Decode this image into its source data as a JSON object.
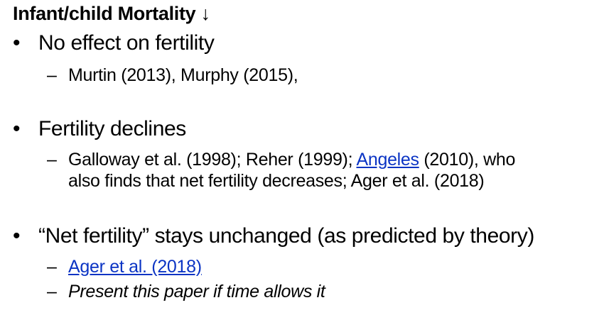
{
  "title": "Infant/child Mortality ↓",
  "bullet_symbol": "•",
  "dash_symbol": "–",
  "bullets": [
    {
      "text": "No effect on fertility",
      "sub": [
        {
          "text": "Murtin (2013), Murphy (2015),"
        }
      ]
    },
    {
      "text": "Fertility declines",
      "sub": [
        {
          "prefix": "Galloway et al. (1998); Reher (1999); ",
          "link": "Angeles",
          "suffix": " (2010), who",
          "continuation": "also finds that net fertility decreases; Ager et al. (2018)"
        }
      ]
    },
    {
      "text": "“Net fertility” stays unchanged (as predicted by theory)",
      "sub": [
        {
          "link": "Ager et al. (2018)"
        },
        {
          "text": "Present this paper if time allows it"
        }
      ]
    }
  ]
}
